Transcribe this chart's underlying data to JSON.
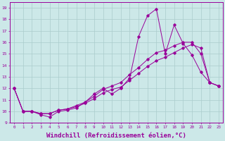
{
  "bg_color": "#cce8e8",
  "line_color": "#990099",
  "grid_color": "#aacccc",
  "xlabel": "Windchill (Refroidissement éolien,°C)",
  "xlabel_fontsize": 6.5,
  "ylabel_ticks": [
    9,
    10,
    11,
    12,
    13,
    14,
    15,
    16,
    17,
    18,
    19
  ],
  "xlim": [
    -0.5,
    23.5
  ],
  "ylim": [
    9,
    19.5
  ],
  "xtick_labels": [
    "0",
    "1",
    "2",
    "3",
    "4",
    "5",
    "6",
    "7",
    "8",
    "9",
    "10",
    "11",
    "12",
    "13",
    "14",
    "15",
    "16",
    "17",
    "18",
    "19",
    "20",
    "21",
    "22",
    "23"
  ],
  "series": [
    {
      "x": [
        0,
        1,
        2,
        3,
        4,
        5,
        6,
        7,
        8,
        9,
        10,
        11,
        12,
        13,
        14,
        15,
        16,
        17,
        18,
        19,
        20,
        21,
        22,
        23
      ],
      "y": [
        12,
        10,
        10,
        9.7,
        9.5,
        10.0,
        10.1,
        10.3,
        10.8,
        11.5,
        12.0,
        11.5,
        12.0,
        12.9,
        16.5,
        18.3,
        18.9,
        15.0,
        17.5,
        15.9,
        14.9,
        13.4,
        12.5,
        12.2
      ]
    },
    {
      "x": [
        0,
        1,
        2,
        3,
        4,
        5,
        6,
        7,
        8,
        9,
        10,
        11,
        12,
        13,
        14,
        15,
        16,
        17,
        18,
        19,
        20,
        21,
        22,
        23
      ],
      "y": [
        12,
        10,
        10,
        9.8,
        9.8,
        10.1,
        10.2,
        10.5,
        10.8,
        11.3,
        11.9,
        12.2,
        12.5,
        13.2,
        13.8,
        14.5,
        15.1,
        15.3,
        15.7,
        16.0,
        16.0,
        15.0,
        12.5,
        12.2
      ]
    },
    {
      "x": [
        0,
        1,
        2,
        3,
        4,
        5,
        6,
        7,
        8,
        9,
        10,
        11,
        12,
        13,
        14,
        15,
        16,
        17,
        18,
        19,
        20,
        21,
        22,
        23
      ],
      "y": [
        12,
        10,
        10,
        9.8,
        9.8,
        10.1,
        10.2,
        10.4,
        10.7,
        11.1,
        11.6,
        11.9,
        12.1,
        12.7,
        13.3,
        13.9,
        14.4,
        14.7,
        15.1,
        15.5,
        15.8,
        15.5,
        12.5,
        12.2
      ]
    }
  ]
}
